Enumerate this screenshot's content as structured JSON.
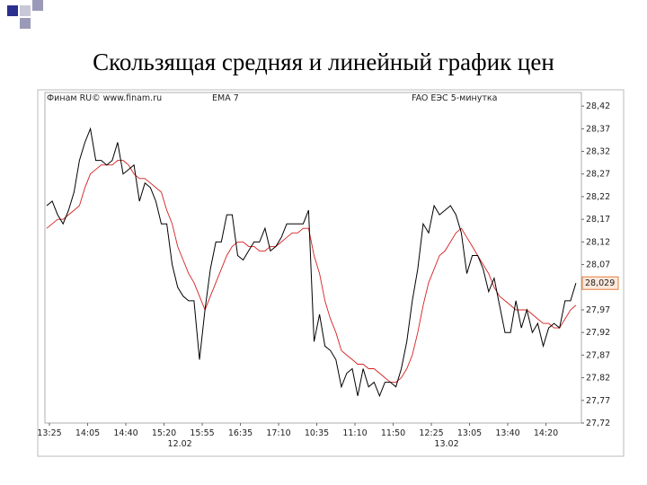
{
  "chart_data": {
    "type": "line",
    "title": "Скользящая средняя и линейный график цен",
    "source": "Финам RU© www.finam.ru",
    "series": [
      {
        "name": "FAO ЕЭС 5-минутка",
        "color": "#000000",
        "values": [
          28.2,
          28.21,
          28.18,
          28.16,
          28.19,
          28.23,
          28.3,
          28.34,
          28.37,
          28.3,
          28.3,
          28.29,
          28.3,
          28.34,
          28.27,
          28.28,
          28.29,
          28.21,
          28.25,
          28.24,
          28.21,
          28.16,
          28.16,
          28.07,
          28.02,
          28.0,
          27.99,
          27.99,
          27.86,
          27.97,
          28.06,
          28.12,
          28.12,
          28.18,
          28.18,
          28.09,
          28.08,
          28.1,
          28.12,
          28.12,
          28.15,
          28.1,
          28.11,
          28.13,
          28.16,
          28.16,
          28.16,
          28.16,
          28.19,
          27.9,
          27.96,
          27.89,
          27.88,
          27.86,
          27.8,
          27.83,
          27.84,
          27.78,
          27.84,
          27.8,
          27.81,
          27.78,
          27.81,
          27.81,
          27.8,
          27.84,
          27.9,
          27.99,
          28.06,
          28.16,
          28.14,
          28.2,
          28.18,
          28.19,
          28.2,
          28.18,
          28.14,
          28.05,
          28.09,
          28.09,
          28.06,
          28.01,
          28.04,
          27.98,
          27.92,
          27.92,
          27.99,
          27.93,
          27.97,
          27.92,
          27.94,
          27.89,
          27.93,
          27.94,
          27.93,
          27.99,
          27.99,
          28.029
        ]
      },
      {
        "name": "EMA 7",
        "color": "#d42020",
        "values": [
          28.15,
          28.16,
          28.17,
          28.17,
          28.18,
          28.19,
          28.2,
          28.24,
          28.27,
          28.28,
          28.29,
          28.29,
          28.29,
          28.3,
          28.3,
          28.29,
          28.27,
          28.26,
          28.26,
          28.25,
          28.24,
          28.23,
          28.19,
          28.16,
          28.11,
          28.08,
          28.05,
          28.03,
          28.0,
          27.97,
          28.0,
          28.03,
          28.06,
          28.09,
          28.11,
          28.12,
          28.12,
          28.11,
          28.11,
          28.1,
          28.1,
          28.11,
          28.11,
          28.12,
          28.13,
          28.14,
          28.14,
          28.15,
          28.15,
          28.09,
          28.05,
          27.99,
          27.95,
          27.92,
          27.88,
          27.87,
          27.86,
          27.85,
          27.85,
          27.84,
          27.84,
          27.83,
          27.82,
          27.81,
          27.81,
          27.82,
          27.84,
          27.87,
          27.92,
          27.98,
          28.03,
          28.06,
          28.09,
          28.1,
          28.12,
          28.14,
          28.15,
          28.13,
          28.11,
          28.09,
          28.07,
          28.05,
          28.02,
          28.0,
          27.99,
          27.98,
          27.97,
          27.97,
          27.97,
          27.96,
          27.95,
          27.94,
          27.94,
          27.93,
          27.93,
          27.95,
          27.97,
          27.98
        ]
      }
    ],
    "last_value": {
      "value": 28.029,
      "label": "28,029"
    },
    "xlim": [
      -0.33,
      98
    ],
    "xticks": [
      {
        "value": 0.5,
        "label": "13:25"
      },
      {
        "value": 7.5,
        "label": "14:05"
      },
      {
        "value": 14.5,
        "label": "14:40"
      },
      {
        "value": 21.5,
        "label": "15:20"
      },
      {
        "value": 28.5,
        "label": "15:55"
      },
      {
        "value": 35.5,
        "label": "16:35"
      },
      {
        "value": 42.5,
        "label": "17:10"
      },
      {
        "value": 49.5,
        "label": "10:35"
      },
      {
        "value": 56.5,
        "label": "11:10"
      },
      {
        "value": 63.5,
        "label": "11:50"
      },
      {
        "value": 70.5,
        "label": "12:25"
      },
      {
        "value": 77.5,
        "label": "13:05"
      },
      {
        "value": 84.5,
        "label": "13:40"
      },
      {
        "value": 91.5,
        "label": "14:20"
      }
    ],
    "date_labels": [
      {
        "value": 24.4,
        "label": "12.02"
      },
      {
        "value": 73.3,
        "label": "13.02"
      }
    ],
    "ylim": [
      27.72,
      28.45
    ],
    "yticks": [
      {
        "value": 28.42,
        "label": "28,42"
      },
      {
        "value": 28.37,
        "label": "28,37"
      },
      {
        "value": 28.32,
        "label": "28,32"
      },
      {
        "value": 28.27,
        "label": "28,27"
      },
      {
        "value": 28.22,
        "label": "28,22"
      },
      {
        "value": 28.17,
        "label": "28,17"
      },
      {
        "value": 28.12,
        "label": "28,12"
      },
      {
        "value": 28.07,
        "label": "28,07"
      },
      {
        "value": 27.97,
        "label": "27,97"
      },
      {
        "value": 27.92,
        "label": "27,92"
      },
      {
        "value": 27.87,
        "label": "27,87"
      },
      {
        "value": 27.82,
        "label": "27,82"
      },
      {
        "value": 27.77,
        "label": "27,77"
      },
      {
        "value": 27.72,
        "label": "27,72"
      }
    ]
  }
}
